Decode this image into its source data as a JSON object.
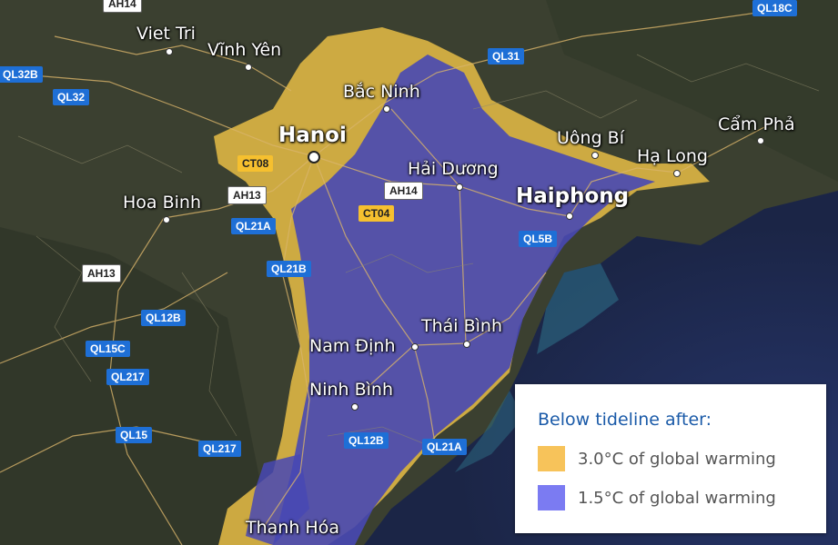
{
  "cities": {
    "viet_tri": "Viet Tri",
    "vinh_yen": "Vĩnh Yên",
    "bac_ninh": "Bắc Ninh",
    "hanoi": "Hanoi",
    "uong_bi": "Uông Bí",
    "cam_pha": "Cẩm Phả",
    "ha_long": "Hạ Long",
    "hai_duong": "Hải Dương",
    "haiphong": "Haiphong",
    "hoa_binh": "Hoa Binh",
    "thai_binh": "Thái Bình",
    "nam_dinh": "Nam Định",
    "ninh_binh": "Ninh Bình",
    "thanh_hoa": "Thanh Hóa"
  },
  "roads": {
    "ah14_top": "AH14",
    "ql18c": "QL18C",
    "ql32b": "QL32B",
    "ql32": "QL32",
    "ql31": "QL31",
    "ct08": "CT08",
    "ah13_a": "AH13",
    "ah14": "AH14",
    "ct04": "CT04",
    "ql21a_a": "QL21A",
    "ql5b": "QL5B",
    "ah13_b": "AH13",
    "ql21b": "QL21B",
    "ql12b_a": "QL12B",
    "ql15c": "QL15C",
    "ql217_a": "QL217",
    "ql15": "QL15",
    "ql217_b": "QL217",
    "ql12b_b": "QL12B",
    "ql21a_b": "QL21A"
  },
  "legend": {
    "title": "Below tideline after:",
    "items": [
      {
        "label": "3.0°C of global warming",
        "color": "#f7c35a"
      },
      {
        "label": "1.5°C of global warming",
        "color": "#7b7bf2"
      }
    ]
  },
  "colors": {
    "land": "#3a3f2e",
    "sea": "#1c2a52",
    "flood_3_0": "#f0c24a",
    "flood_1_5": "#4c4cb8"
  }
}
